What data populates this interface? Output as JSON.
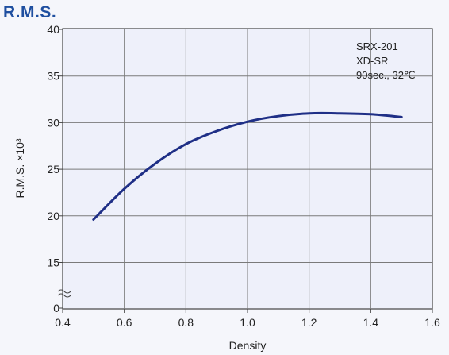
{
  "chart_data": {
    "type": "line",
    "title": "R.M.S.",
    "xlabel": "Density",
    "ylabel": "R.M.S. ×10³",
    "xlim": [
      0.4,
      1.6
    ],
    "ylim": [
      0,
      40
    ],
    "axis_break": "y between 0 and 15",
    "x_ticks": [
      "0.4",
      "0.6",
      "0.8",
      "1.0",
      "1.2",
      "1.4",
      "1.6"
    ],
    "y_ticks": [
      "0",
      "15",
      "20",
      "25",
      "30",
      "35",
      "40"
    ],
    "grid": true,
    "annotation": [
      "SRX-201",
      "XD-SR",
      "90sec., 32℃"
    ],
    "line_color": "#1f2f86",
    "grid_color": "#7a7a7a",
    "series": [
      {
        "x": [
          0.5,
          0.6,
          0.7,
          0.8,
          0.9,
          1.0,
          1.1,
          1.2,
          1.3,
          1.4,
          1.5
        ],
        "values": [
          19.6,
          22.9,
          25.6,
          27.7,
          29.1,
          30.1,
          30.7,
          31.0,
          31.0,
          30.9,
          30.6
        ]
      }
    ]
  }
}
